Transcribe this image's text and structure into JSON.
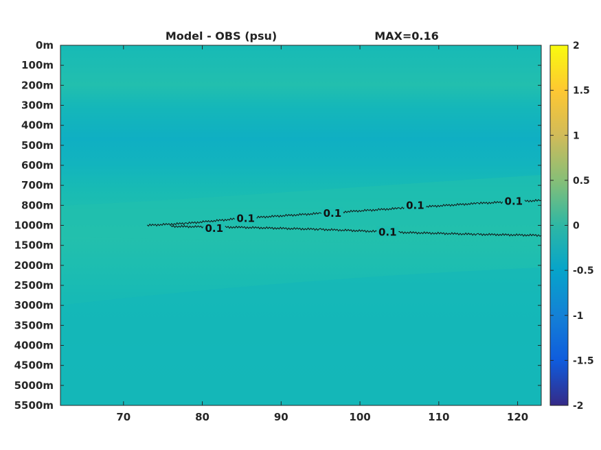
{
  "chart_data": {
    "type": "heatmap",
    "title": "Model - OBS (psu)",
    "max_label": "MAX=0.16",
    "x_ticks": [
      70,
      80,
      90,
      100,
      110,
      120
    ],
    "xlim": [
      62,
      123
    ],
    "y_tick_labels": [
      "0m",
      "100m",
      "200m",
      "300m",
      "400m",
      "500m",
      "600m",
      "700m",
      "800m",
      "1000m",
      "1500m",
      "2000m",
      "2500m",
      "3000m",
      "3500m",
      "4000m",
      "4500m",
      "5000m",
      "5500m"
    ],
    "y_levels": [
      0,
      100,
      200,
      300,
      400,
      500,
      600,
      700,
      800,
      1000,
      1500,
      2000,
      2500,
      3000,
      3500,
      4000,
      4500,
      5000,
      5500
    ],
    "colorbar": {
      "ticks": [
        2,
        1.5,
        1,
        0.5,
        0,
        -0.5,
        -1,
        -1.5,
        -2
      ],
      "clim": [
        -2,
        2
      ],
      "colormap": "parula"
    },
    "contours": [
      {
        "level": 0.1,
        "x": [
          73,
          78,
          85,
          95,
          105,
          115,
          123
        ],
        "y_level_index": [
          9.0,
          8.9,
          8.65,
          8.4,
          8.15,
          7.9,
          7.75
        ]
      },
      {
        "level": 0.1,
        "x": [
          76,
          85,
          95,
          105,
          115,
          123
        ],
        "y_level_index": [
          9.05,
          9.1,
          9.2,
          9.35,
          9.45,
          9.5
        ]
      }
    ],
    "contour_labels": [
      {
        "text": "0.1",
        "x": 85.5,
        "y_level_index": 8.65
      },
      {
        "text": "0.1",
        "x": 81.5,
        "y_level_index": 9.15
      },
      {
        "text": "0.1",
        "x": 96.5,
        "y_level_index": 8.4
      },
      {
        "text": "0.1",
        "x": 107,
        "y_level_index": 8.0
      },
      {
        "text": "0.1",
        "x": 119.5,
        "y_level_index": 7.8
      },
      {
        "text": "0.1",
        "x": 103.5,
        "y_level_index": 9.35
      }
    ],
    "field_colors": {
      "base": "#13BAB8",
      "band_200m": "#22BFAE",
      "band_450m": "#10B0C1",
      "mid_depth": "#1CBDB1",
      "deep": "#15B8B6"
    }
  }
}
